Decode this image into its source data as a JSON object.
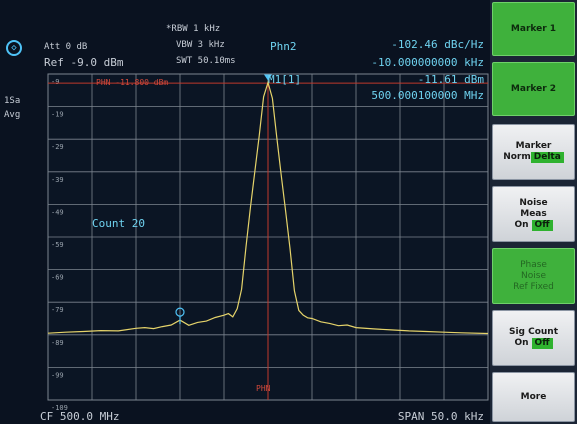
{
  "header": {
    "att": "Att 0 dB",
    "ref": "Ref -9.0 dBm",
    "rbw": "*RBW 1 kHz",
    "vbw": "VBW 3 kHz",
    "swt": "SWT 50.10ms",
    "mode": "Phn2",
    "noise_value": "-102.46 dBc/Hz",
    "offset_value": "-10.000000000 kHz",
    "marker_label": "M1[1]",
    "marker_level": "-11.61 dBm",
    "marker_freq": "500.000100000 MHz",
    "phn_line_label": "PHN -11.800 dBm",
    "side_sa": "1Sa",
    "side_avg": "Avg",
    "count_label": "Count 20",
    "phn_marker_label": "PHN"
  },
  "y_axis_labels": [
    "-9",
    "-19",
    "-29",
    "-39",
    "-49",
    "-59",
    "-69",
    "-79",
    "-89",
    "-99",
    "-109"
  ],
  "footer": {
    "center": "CF 500.0 MHz",
    "span": "SPAN 50.0 kHz"
  },
  "softkeys": {
    "marker1": "Marker 1",
    "marker2": "Marker 2",
    "marker_norm_delta": {
      "title": "Marker",
      "left": "Norm",
      "right": "Delta"
    },
    "noise_meas": {
      "line1": "Noise",
      "line2": "Meas",
      "on": "On",
      "off": "Off"
    },
    "phase_noise": {
      "line1": "Phase",
      "line2": "Noise",
      "line3": "Ref Fixed"
    },
    "sig_count": {
      "line1": "Sig Count",
      "on": "On",
      "off": "Off"
    },
    "more": "More"
  },
  "colors": {
    "trace": "#e5d36a",
    "grid": "#7c858f",
    "marker": "#4fc3f7",
    "phn_line": "#c0392b",
    "softkey_active": "#3fb13c",
    "softkey_inactive": "#d9dde2"
  },
  "chart_data": {
    "type": "line",
    "xlabel": "",
    "ylabel": "",
    "x_unit": "kHz offset from 500.0 MHz",
    "xlim": [
      -25,
      25
    ],
    "ylim": [
      -109,
      -9
    ],
    "grid": true,
    "series": [
      {
        "x": [
          -25,
          -23,
          -21,
          -19,
          -17,
          -15,
          -14,
          -13,
          -12,
          -11,
          -10,
          -9,
          -8,
          -7,
          -6,
          -5,
          -4.5,
          -4,
          -3.5,
          -3,
          -2.5,
          -2,
          -1.5,
          -1,
          -0.5,
          0,
          0.5,
          1,
          1.5,
          2,
          2.5,
          3,
          3.5,
          4,
          4.5,
          5,
          6,
          7,
          8,
          9,
          10,
          12,
          14,
          16,
          18,
          20,
          22,
          25
        ],
        "values": [
          -88.5,
          -88.2,
          -88.0,
          -87.7,
          -87.8,
          -87.0,
          -86.8,
          -87.1,
          -86.5,
          -86.0,
          -84.5,
          -86.1,
          -85.2,
          -84.8,
          -83.7,
          -83.0,
          -82.5,
          -83.5,
          -81.0,
          -75.0,
          -62.0,
          -50.0,
          -39.0,
          -28.0,
          -16.0,
          -11.6,
          -16.5,
          -28.5,
          -40.0,
          -51.0,
          -62.5,
          -75.5,
          -81.5,
          -83.0,
          -83.8,
          -84.0,
          -85.0,
          -85.5,
          -86.2,
          -86.0,
          -86.8,
          -87.2,
          -87.5,
          -87.8,
          -88.0,
          -88.2,
          -88.4,
          -88.6
        ]
      }
    ]
  }
}
